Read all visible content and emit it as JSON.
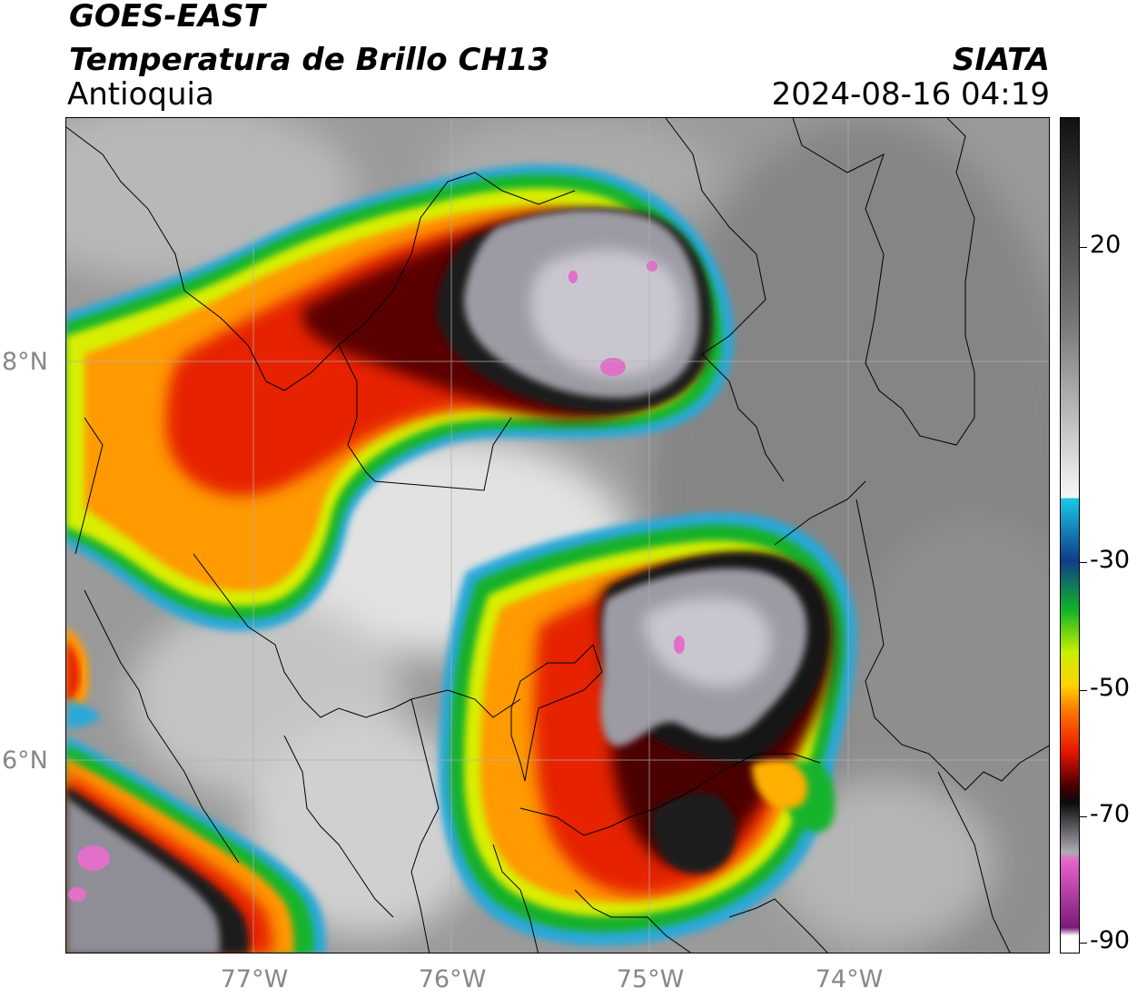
{
  "header": {
    "satellite": "GOES-EAST",
    "product": "Temperatura de Brillo CH13",
    "region": "Antioquia",
    "agency": "SIATA",
    "datetime": "2024-08-16 04:19"
  },
  "map": {
    "lat_labels": [
      "8°N",
      "6°N"
    ],
    "lon_labels": [
      "77°W",
      "76°W",
      "75°W",
      "74°W"
    ]
  },
  "colorbar": {
    "tick_labels": [
      "20",
      "-30",
      "-50",
      "-70",
      "-90"
    ],
    "colors": {
      "top": "#111111",
      "gray_high": "#7a7a7a",
      "white": "#f4f4f4",
      "cyan": "#19c8e6",
      "blue": "#0f3c8c",
      "green": "#12b428",
      "lime": "#c8f000",
      "yellow": "#ffd200",
      "orange": "#ff7800",
      "red": "#e61400",
      "darkred": "#4b0000",
      "black": "#0a0a0a",
      "pink": "#e664c8",
      "purple": "#7a1a7a"
    }
  }
}
